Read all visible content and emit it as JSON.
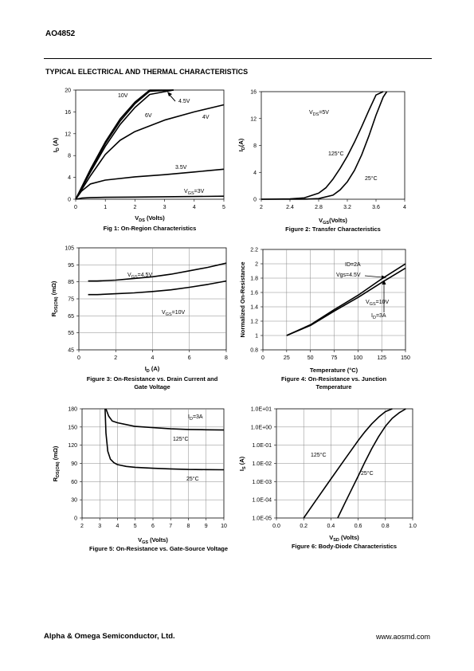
{
  "header": {
    "part_number": "AO4852",
    "section_title": "TYPICAL ELECTRICAL AND THERMAL CHARACTERISTICS"
  },
  "footer": {
    "company": "Alpha & Omega Semiconductor, Ltd.",
    "website": "www.aosmd.com"
  },
  "chart_data": [
    {
      "type": "line",
      "caption": "Fig 1: On-Region Characteristics",
      "xlabel": "VDS (Volts)",
      "ylabel": "ID (A)",
      "xlim": [
        0,
        5
      ],
      "ylim": [
        0,
        20
      ],
      "xticks": [
        0,
        1,
        2,
        3,
        4,
        5
      ],
      "yticks": [
        0,
        4,
        8,
        12,
        16,
        20
      ],
      "grid": false,
      "series": [
        {
          "name": "10V",
          "x": [
            0,
            0.5,
            1,
            1.5,
            2,
            2.5,
            3.3
          ],
          "y": [
            0,
            5.5,
            10.5,
            14.7,
            17.8,
            20,
            20
          ]
        },
        {
          "name": "6V",
          "x": [
            0,
            0.5,
            1,
            1.5,
            2,
            2.5,
            3.3
          ],
          "y": [
            0,
            5.3,
            10.2,
            14.3,
            17.5,
            19.8,
            20
          ]
        },
        {
          "name": "4.5V",
          "x": [
            0,
            0.5,
            1,
            1.5,
            2,
            2.5,
            3.3
          ],
          "y": [
            0,
            5,
            9.7,
            13.7,
            16.8,
            19.2,
            20
          ]
        },
        {
          "name": "4V",
          "x": [
            0,
            0.5,
            1,
            1.5,
            2,
            3,
            4,
            5
          ],
          "y": [
            0,
            4.3,
            8.2,
            10.8,
            12.4,
            14.5,
            16,
            17.3
          ]
        },
        {
          "name": "3.5V",
          "x": [
            0,
            0.2,
            0.5,
            1,
            2,
            3,
            4,
            5
          ],
          "y": [
            0,
            1.5,
            2.8,
            3.5,
            4.1,
            4.5,
            5,
            5.5
          ]
        },
        {
          "name": "VGS=3V",
          "x": [
            0,
            0.2,
            0.5,
            1,
            2,
            3,
            4,
            5
          ],
          "y": [
            0,
            0.2,
            0.3,
            0.35,
            0.4,
            0.45,
            0.5,
            0.55
          ]
        }
      ]
    },
    {
      "type": "line",
      "caption": "Figure 2: Transfer Characteristics",
      "xlabel": "VGS(Volts)",
      "ylabel": "ID(A)",
      "xlim": [
        2,
        4
      ],
      "ylim": [
        0,
        16
      ],
      "xticks": [
        2,
        2.4,
        2.8,
        3.2,
        3.6,
        4
      ],
      "yticks": [
        0,
        4,
        8,
        12,
        16
      ],
      "grid": false,
      "annotation": "VDS=5V",
      "series": [
        {
          "name": "125°C",
          "x": [
            2,
            2.4,
            2.6,
            2.8,
            2.9,
            3.0,
            3.1,
            3.2,
            3.3,
            3.4,
            3.5,
            3.6,
            3.7
          ],
          "y": [
            0,
            0.05,
            0.2,
            0.9,
            1.7,
            3.0,
            4.6,
            6.4,
            8.5,
            10.8,
            13.2,
            15.5,
            16
          ]
        },
        {
          "name": "25°C",
          "x": [
            2,
            2.6,
            2.8,
            3.0,
            3.1,
            3.2,
            3.3,
            3.4,
            3.5,
            3.6,
            3.7,
            3.75
          ],
          "y": [
            0,
            0.01,
            0.1,
            0.6,
            1.4,
            2.6,
            4.3,
            6.6,
            9.4,
            12.5,
            15.2,
            16
          ]
        }
      ]
    },
    {
      "type": "line",
      "caption": "Figure 3: On-Resistance vs. Drain Current and Gate Voltage",
      "xlabel": "ID (A)",
      "ylabel": "RDS(ON) (mΩ)",
      "xlim": [
        0,
        8
      ],
      "ylim": [
        45,
        105
      ],
      "xticks": [
        0,
        2,
        4,
        6,
        8
      ],
      "yticks": [
        45,
        55,
        65,
        75,
        85,
        95,
        105
      ],
      "grid": true,
      "series": [
        {
          "name": "VGS=4.5V",
          "x": [
            0.5,
            1,
            2,
            3,
            4,
            5,
            6,
            7,
            8
          ],
          "y": [
            85.5,
            85.5,
            86,
            87,
            88,
            89.5,
            91.5,
            93.5,
            96
          ]
        },
        {
          "name": "VGS=10V",
          "x": [
            0.5,
            1,
            2,
            3,
            4,
            5,
            6,
            7,
            8
          ],
          "y": [
            77.5,
            77.5,
            78,
            78.5,
            79.3,
            80.3,
            81.8,
            83.5,
            85.5
          ]
        }
      ]
    },
    {
      "type": "line",
      "caption": "Figure 4: On-Resistance vs. Junction Temperature",
      "xlabel": "Temperature (°C)",
      "ylabel": "Normalized On-Resistance",
      "xlim": [
        0,
        150
      ],
      "ylim": [
        0.8,
        2.2
      ],
      "xticks": [
        0,
        25,
        50,
        75,
        100,
        125,
        150
      ],
      "yticks": [
        0.8,
        1.0,
        1.2,
        1.4,
        1.6,
        1.8,
        2.0,
        2.2
      ],
      "grid": true,
      "annotations": [
        "ID=2A",
        "Vgs=4.5V",
        "VGS=10V",
        "ID=3A"
      ],
      "series": [
        {
          "name": "Vgs=4.5V ID=2A",
          "x": [
            25,
            50,
            75,
            100,
            125,
            150
          ],
          "y": [
            1.0,
            1.15,
            1.36,
            1.56,
            1.79,
            2.0
          ]
        },
        {
          "name": "VGS=10V ID=3A",
          "x": [
            25,
            50,
            75,
            100,
            125,
            150
          ],
          "y": [
            1.0,
            1.14,
            1.34,
            1.53,
            1.74,
            1.94
          ]
        }
      ]
    },
    {
      "type": "line",
      "caption": "Figure 5: On-Resistance vs. Gate-Source Voltage",
      "xlabel": "VGS (Volts)",
      "ylabel": "RDS(ON) (mΩ)",
      "xlim": [
        2,
        10
      ],
      "ylim": [
        0,
        180
      ],
      "xticks": [
        2,
        3,
        4,
        5,
        6,
        7,
        8,
        9,
        10
      ],
      "yticks": [
        0,
        30,
        60,
        90,
        120,
        150,
        180
      ],
      "grid": true,
      "annotation": "ID=3A",
      "series": [
        {
          "name": "125°C",
          "x": [
            3.35,
            3.5,
            3.7,
            4,
            4.5,
            5,
            6,
            7,
            8,
            9,
            10
          ],
          "y": [
            180,
            168,
            160,
            157,
            154,
            151,
            149,
            147,
            146,
            145.5,
            145
          ]
        },
        {
          "name": "25°C",
          "x": [
            3.3,
            3.35,
            3.45,
            3.6,
            3.8,
            4,
            4.5,
            5,
            6,
            7,
            8,
            9,
            10
          ],
          "y": [
            180,
            140,
            110,
            97,
            91,
            88,
            85,
            83.5,
            82,
            81,
            80,
            79.8,
            79.5
          ]
        }
      ]
    },
    {
      "type": "line",
      "caption": "Figure 6: Body-Diode Characteristics",
      "xlabel": "VSD (Volts)",
      "ylabel": "IS (A)",
      "xlim": [
        0,
        1
      ],
      "ylim": [
        1e-05,
        10
      ],
      "yscale": "log",
      "xticks": [
        "0.0",
        "0.2",
        "0.4",
        "0.6",
        "0.8",
        "1.0"
      ],
      "yticks": [
        "1.0E-05",
        "1.0E-04",
        "1.0E-03",
        "1.0E-02",
        "1.0E-01",
        "1.0E+00",
        "1.0E+01"
      ],
      "grid": true,
      "series": [
        {
          "name": "125°C",
          "x": [
            0.2,
            0.3,
            0.4,
            0.5,
            0.6,
            0.65,
            0.7,
            0.75,
            0.8,
            0.85
          ],
          "y": [
            1e-05,
            0.00012,
            0.0014,
            0.016,
            0.18,
            0.55,
            1.5,
            3.5,
            7,
            10
          ]
        },
        {
          "name": "25°C",
          "x": [
            0.45,
            0.5,
            0.55,
            0.6,
            0.65,
            0.7,
            0.75,
            0.8,
            0.85,
            0.9,
            0.95
          ],
          "y": [
            1e-05,
            6e-05,
            0.00035,
            0.002,
            0.012,
            0.065,
            0.3,
            1.1,
            3,
            6,
            10
          ]
        }
      ]
    }
  ]
}
